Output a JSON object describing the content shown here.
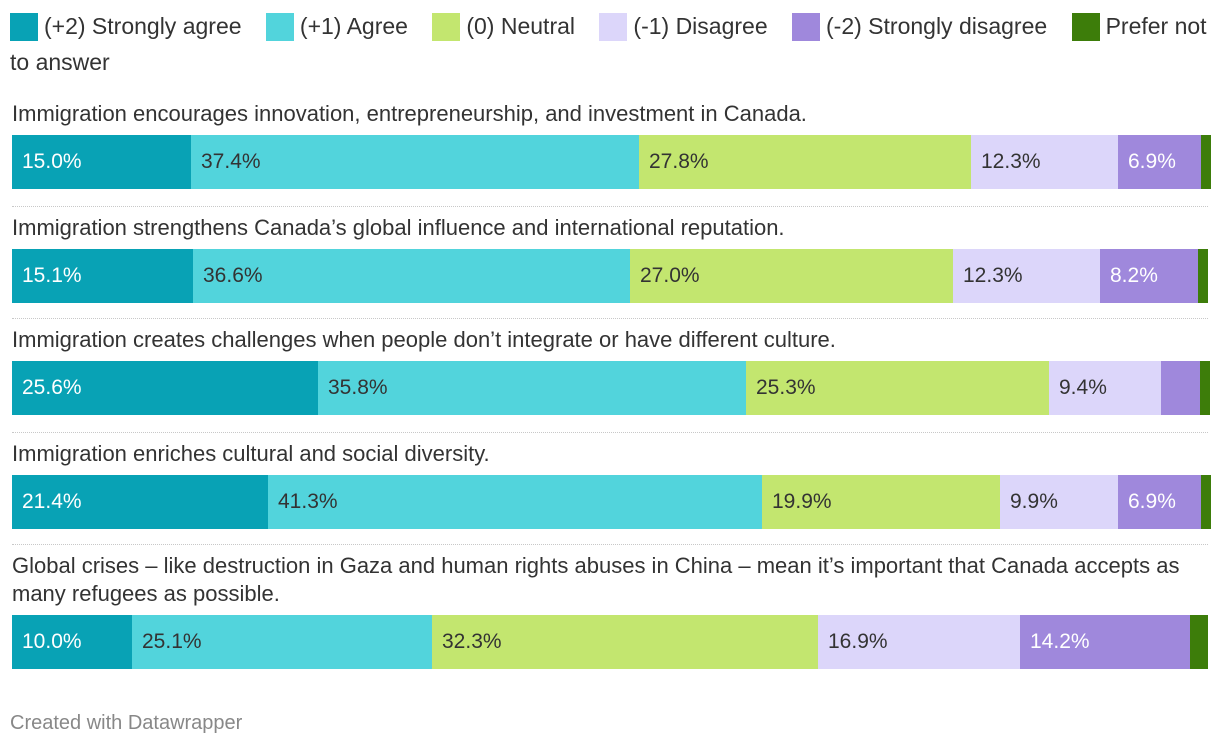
{
  "legend": [
    {
      "label": "(+2) Strongly agree",
      "color": "#08a2b5"
    },
    {
      "label": "(+1) Agree",
      "color": "#52d4dc"
    },
    {
      "label": "(0) Neutral",
      "color": "#c3e66f"
    },
    {
      "label": "(-1) Disagree",
      "color": "#dcd6fa"
    },
    {
      "label": "(-2) Strongly disagree",
      "color": "#9f88dc"
    },
    {
      "label": "Prefer not to answer",
      "color": "#3d7d0a"
    }
  ],
  "chart_data": {
    "type": "bar",
    "orientation": "horizontal",
    "stacked": true,
    "normalized": "100%",
    "series_names": [
      "(+2) Strongly agree",
      "(+1) Agree",
      "(0) Neutral",
      "(-1) Disagree",
      "(-2) Strongly disagree",
      "Prefer not to answer"
    ],
    "rows": [
      {
        "label": "Immigration encourages innovation, entrepreneurship, and investment in Canada.",
        "values": [
          15.0,
          37.4,
          27.8,
          12.3,
          6.9,
          0.6
        ],
        "value_labels": [
          "15.0%",
          "37.4%",
          "27.8%",
          "12.3%",
          "6.9%",
          ""
        ]
      },
      {
        "label": "Immigration strengthens Canada’s global influence and international reputation.",
        "values": [
          15.1,
          36.6,
          27.0,
          12.3,
          8.2,
          0.8
        ],
        "value_labels": [
          "15.1%",
          "36.6%",
          "27.0%",
          "12.3%",
          "8.2%",
          ""
        ]
      },
      {
        "label": "Immigration creates challenges when people don’t integrate or have different culture.",
        "values": [
          25.6,
          35.8,
          25.3,
          9.4,
          3.2,
          0.7
        ],
        "value_labels": [
          "25.6%",
          "35.8%",
          "25.3%",
          "9.4%",
          "",
          ""
        ]
      },
      {
        "label": "Immigration enriches cultural and social diversity.",
        "values": [
          21.4,
          41.3,
          19.9,
          9.9,
          6.9,
          0.6
        ],
        "value_labels": [
          "21.4%",
          "41.3%",
          "19.9%",
          "9.9%",
          "6.9%",
          ""
        ]
      },
      {
        "label": "Global crises – like destruction in Gaza and human rights abuses in China – mean it’s important that Canada accepts as many refugees as possible.",
        "values": [
          10.0,
          25.1,
          32.3,
          16.9,
          14.2,
          1.5
        ],
        "value_labels": [
          "10.0%",
          "25.1%",
          "32.3%",
          "16.9%",
          "14.2%",
          ""
        ]
      }
    ]
  },
  "footer": "Created with Datawrapper"
}
